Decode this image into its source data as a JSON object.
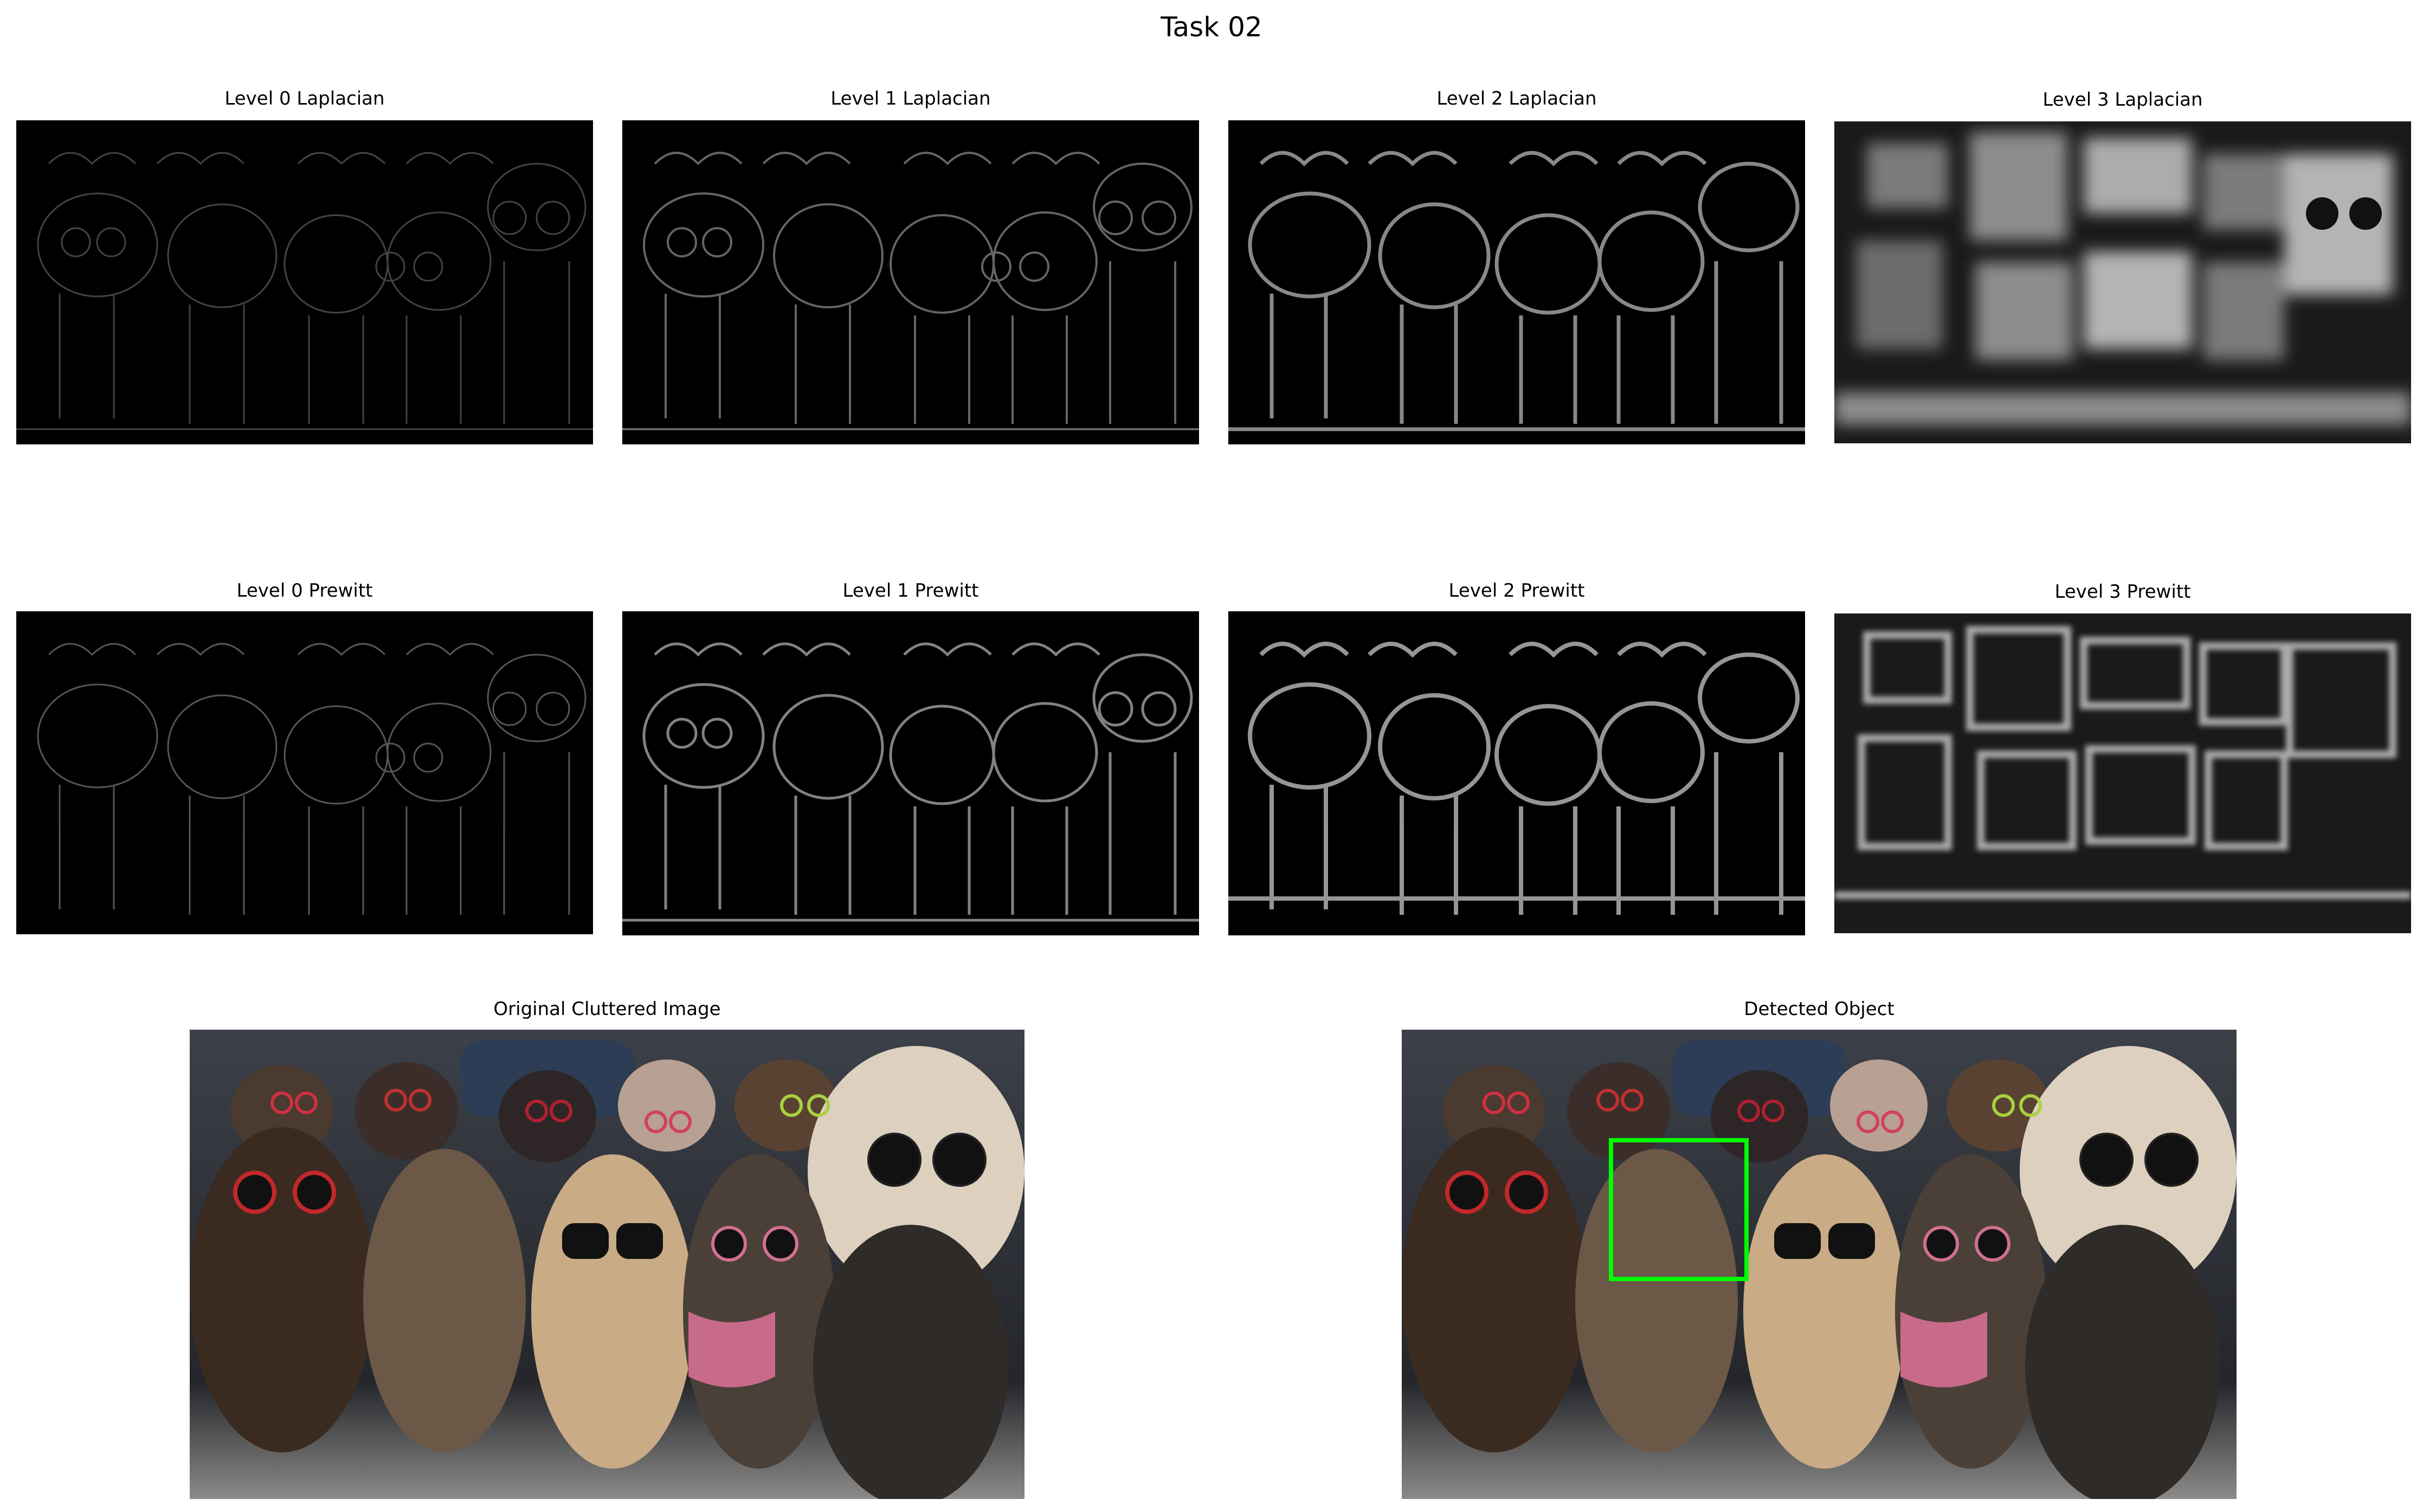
{
  "figure": {
    "title": "Task 02"
  },
  "panels": {
    "lap0": "Level 0 Laplacian",
    "lap1": "Level 1 Laplacian",
    "lap2": "Level 2 Laplacian",
    "lap3": "Level 3 Laplacian",
    "pre0": "Level 0 Prewitt",
    "pre1": "Level 1 Prewitt",
    "pre2": "Level 2 Prewitt",
    "pre3": "Level 3 Prewitt",
    "original": "Original Cluttered Image",
    "detected": "Detected Object"
  },
  "colors": {
    "background": "#ffffff",
    "edge_background": "#000000",
    "detection_box": "#00ff00"
  },
  "icons": {
    "edge_map": "edge-map-image",
    "photo": "cats-with-sunglasses-photo"
  }
}
